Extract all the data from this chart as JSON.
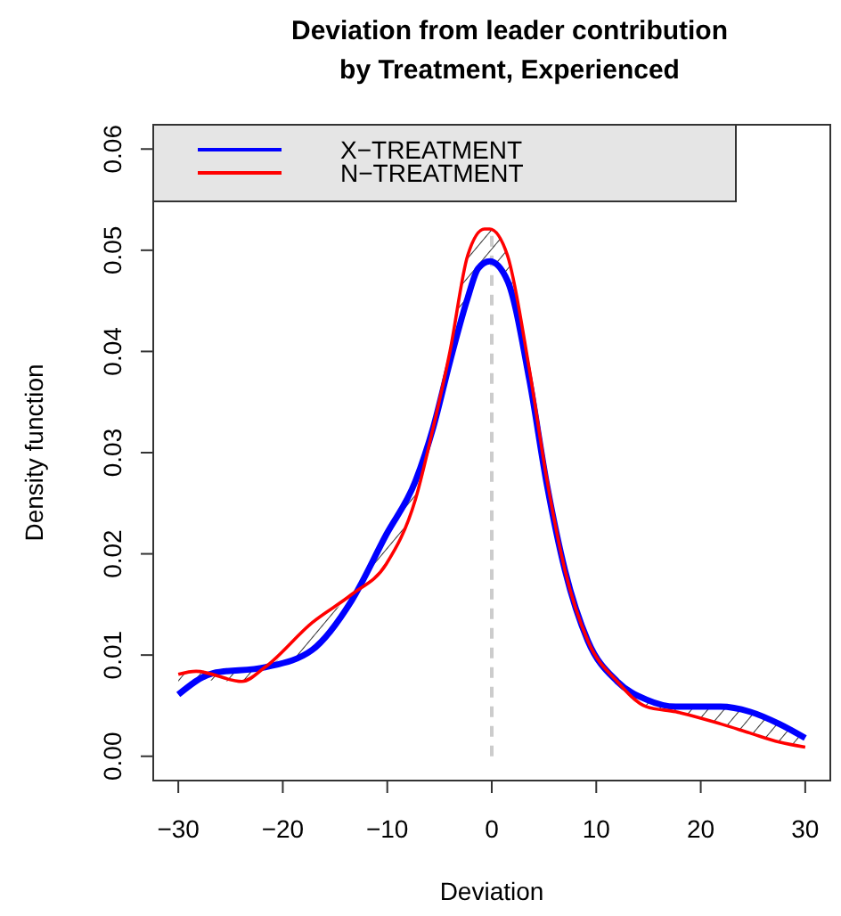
{
  "chart_data": {
    "type": "line",
    "title": "Deviation from leader contribution\nby Treatment, Experienced",
    "xlabel": "Deviation",
    "ylabel": "Density function",
    "xlim": [
      -32.4,
      32.4
    ],
    "ylim": [
      -0.0024,
      0.0624
    ],
    "xticks": [
      -30,
      -20,
      -10,
      0,
      10,
      20,
      30
    ],
    "yticks": [
      {
        "value": 0,
        "label": "0.00"
      },
      0.01,
      0.02,
      0.03,
      0.04,
      0.05,
      0.06
    ],
    "legend": "top left",
    "grid": false,
    "line_style": "solid",
    "marker": "none",
    "ref_lines": [
      {
        "axis": "x",
        "value": 0,
        "label": null,
        "color": "#cccccc",
        "line_style": "dashed"
      }
    ],
    "series": [
      {
        "name": "X−TREATMENT",
        "color": "#0000ff",
        "x": [
          -30,
          -26.7,
          -21.7,
          -17.2,
          -13.4,
          -10.1,
          -7.3,
          -5.6,
          -4,
          -2.3,
          -1.3,
          -0.2,
          1.5,
          3.6,
          5.3,
          7,
          9.2,
          12,
          14.8,
          17.6,
          21.9,
          24.7,
          27.5,
          30
        ],
        "values": [
          0.0061,
          0.0082,
          0.0088,
          0.0105,
          0.0154,
          0.0219,
          0.0272,
          0.0325,
          0.039,
          0.0453,
          0.0482,
          0.0489,
          0.047,
          0.0372,
          0.0267,
          0.0184,
          0.0114,
          0.0074,
          0.0056,
          0.0049,
          0.0049,
          0.0044,
          0.0032,
          0.0018
        ]
      },
      {
        "name": "N−TREATMENT",
        "color": "#ff0000",
        "lower": [
          0.0061,
          0.0075,
          0.0074,
          0.0088,
          0.0105,
          0.0154,
          0.019,
          0.0254,
          0.0325,
          0.039,
          0.0453,
          0.0487,
          0.0489,
          0.047,
          0.0372,
          0.0267,
          0.0184,
          0.0114,
          0.0074,
          0.0049,
          0.0044,
          0.0032,
          0.0023,
          0.0014,
          0.0009
        ],
        "upper": [
          0.0081,
          0.0084,
          0.0086,
          0.0088,
          0.0132,
          0.016,
          0.0219,
          0.0272,
          0.0325,
          0.04,
          0.0495,
          0.0521,
          0.0521,
          0.0495,
          0.0382,
          0.0272,
          0.0184,
          0.0114,
          0.0074,
          0.0056,
          0.0049,
          0.0049,
          0.0044,
          0.0032,
          0.0018
        ],
        "x": [
          -30,
          -28.3,
          -23.9,
          -21.7,
          -17.2,
          -13.4,
          -10.1,
          -7.3,
          -5.6,
          -4,
          -2.3,
          -0.7,
          -0.2,
          1.5,
          3.6,
          5.3,
          7,
          9.2,
          12,
          14.8,
          17.6,
          21.9,
          24.7,
          27.5,
          30
        ],
        "values": [
          0.0081,
          0.0084,
          0.0074,
          0.0088,
          0.0132,
          0.016,
          0.019,
          0.0254,
          0.0325,
          0.04,
          0.0495,
          0.0521,
          0.0521,
          0.0495,
          0.0382,
          0.0272,
          0.0184,
          0.0114,
          0.0074,
          0.0049,
          0.0044,
          0.0032,
          0.0023,
          0.0014,
          0.0009
        ]
      }
    ]
  }
}
